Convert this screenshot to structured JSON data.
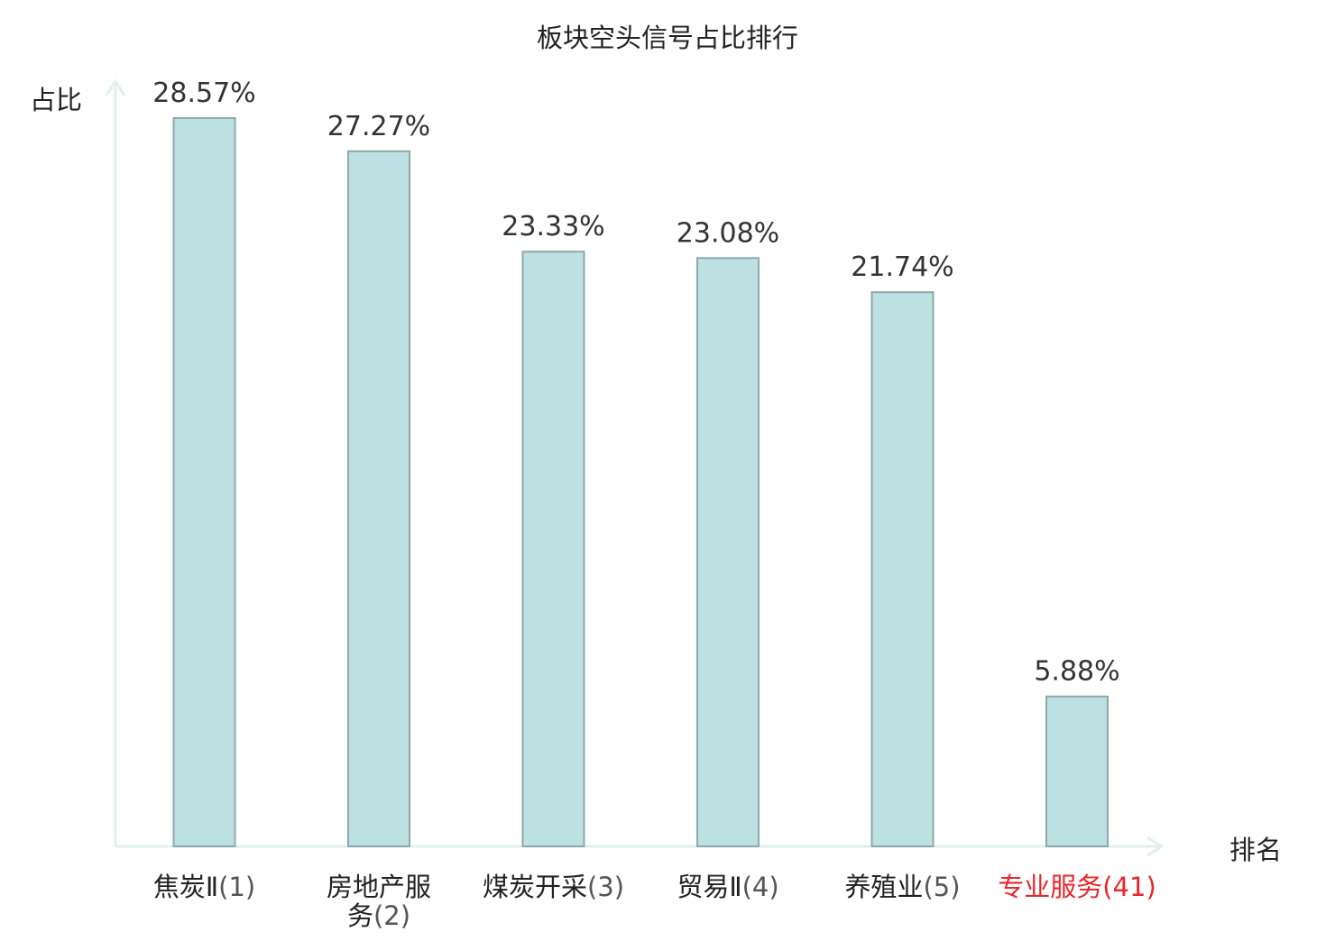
{
  "chart_data": {
    "type": "bar",
    "title": "板块空头信号占比排行",
    "ylabel": "占比",
    "xlabel": "排名",
    "ylim": [
      0,
      30
    ],
    "categories": [
      {
        "name": "焦炭Ⅱ",
        "rank": "(1)",
        "value": 28.57,
        "value_label": "28.57%",
        "highlight": false,
        "lines": [
          [
            "焦炭Ⅱ",
            "(1)"
          ]
        ]
      },
      {
        "name": "房地产服务",
        "rank": "(2)",
        "value": 27.27,
        "value_label": "27.27%",
        "highlight": false,
        "lines": [
          [
            "房地产服",
            ""
          ],
          [
            "务",
            "(2)"
          ]
        ]
      },
      {
        "name": "煤炭开采",
        "rank": "(3)",
        "value": 23.33,
        "value_label": "23.33%",
        "highlight": false,
        "lines": [
          [
            "煤炭开采",
            "(3)"
          ]
        ]
      },
      {
        "name": "贸易Ⅱ",
        "rank": "(4)",
        "value": 23.08,
        "value_label": "23.08%",
        "highlight": false,
        "lines": [
          [
            "贸易Ⅱ",
            "(4)"
          ]
        ]
      },
      {
        "name": "养殖业",
        "rank": "(5)",
        "value": 21.74,
        "value_label": "21.74%",
        "highlight": false,
        "lines": [
          [
            "养殖业",
            "(5)"
          ]
        ]
      },
      {
        "name": "专业服务",
        "rank": "(41)",
        "value": 5.88,
        "value_label": "5.88%",
        "highlight": true,
        "lines": [
          [
            "专业服务",
            "(41)"
          ]
        ]
      }
    ],
    "colors": {
      "bar_fill": "#bde0e2",
      "bar_stroke": "#8fa9aa",
      "axis": "#dff1ee",
      "text": "#333333",
      "rank_text": "#555555",
      "highlight": "#e8262a"
    }
  }
}
